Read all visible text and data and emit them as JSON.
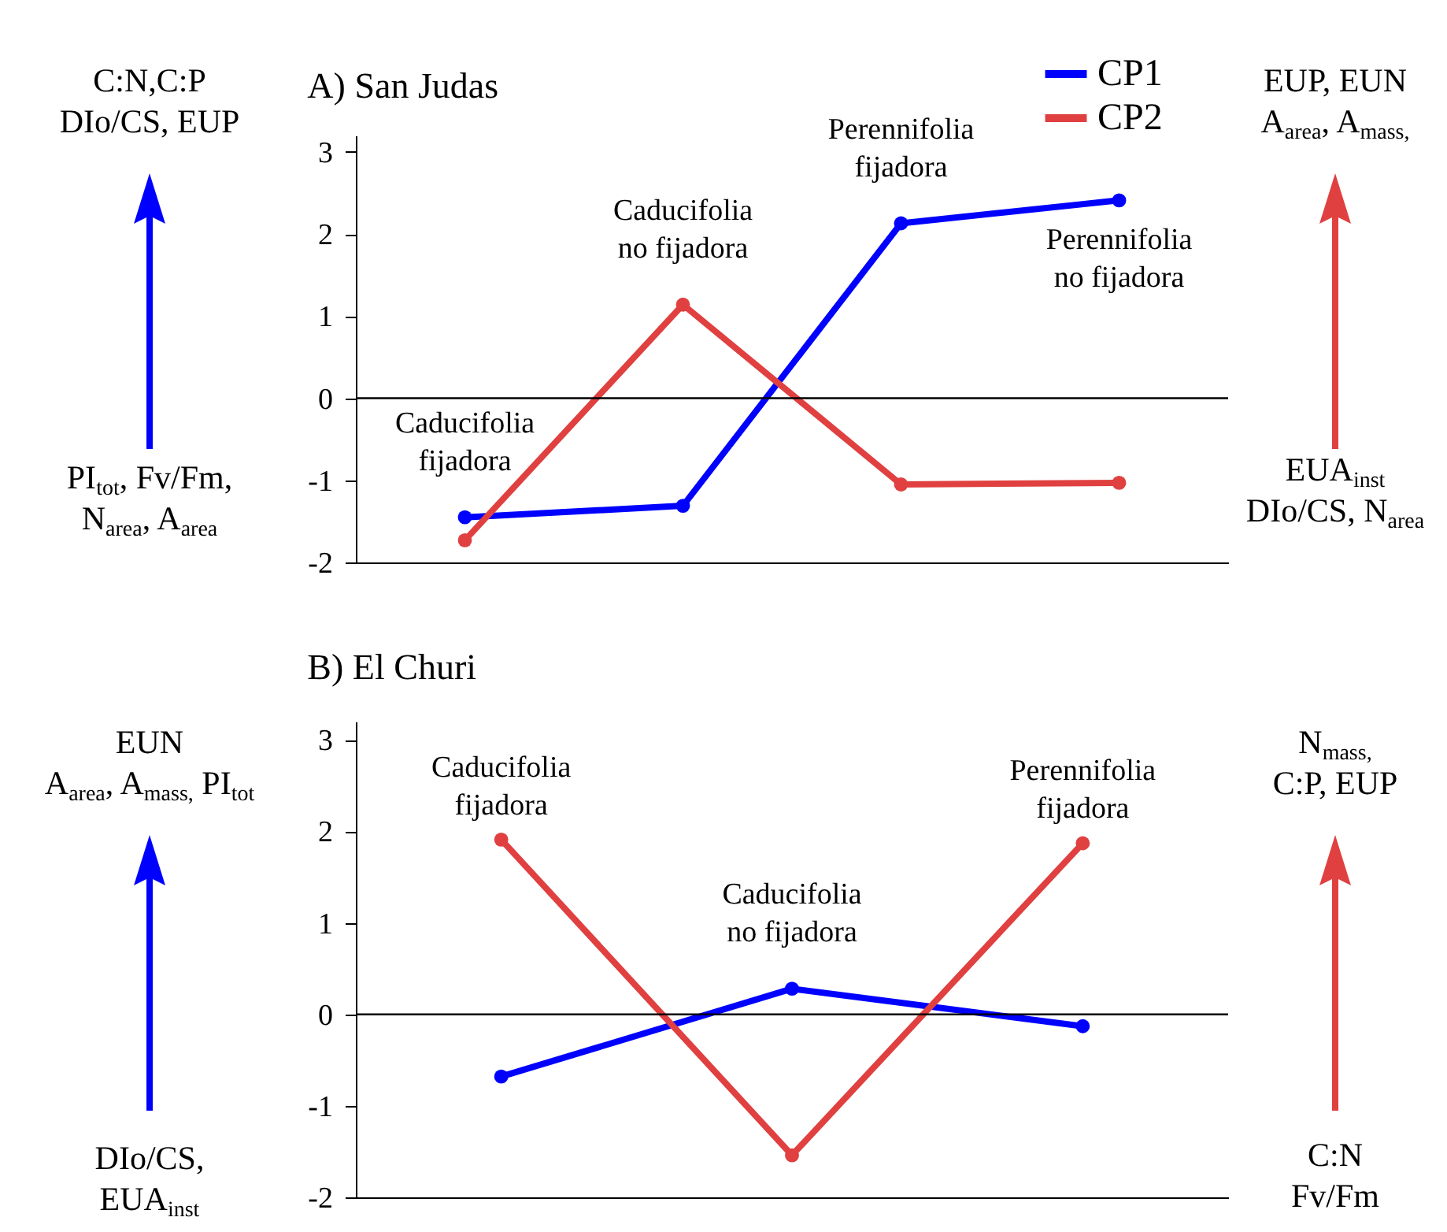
{
  "chart_data": [
    {
      "type": "line",
      "title": "A) San Judas",
      "categories": [
        "Caducifolia\nfijadora",
        "Caducifolia\nno fijadora",
        "Perennifolia\nfijadora",
        "Perennifolia\nno fijadora"
      ],
      "series": [
        {
          "name": "CP1",
          "color": "#0000ff",
          "values": [
            -1.45,
            -1.31,
            2.13,
            2.41
          ]
        },
        {
          "name": "CP2",
          "color": "#e04040",
          "values": [
            -1.73,
            1.14,
            -1.05,
            -1.03
          ]
        }
      ],
      "ylim": [
        -2,
        3.2
      ],
      "yticks": [
        -2,
        -1,
        0,
        1,
        2,
        3
      ],
      "tick_labels": "y",
      "grid": false,
      "legend": "top right",
      "marker": "circle",
      "line_style": "solid",
      "ref_lines": [
        {
          "axis": "y",
          "value": 0,
          "color": "#000000"
        }
      ],
      "annotations": [
        "C:N,C:P\nDIo/CS, EUP",
        "PI$_{tot}$, Fv/Fm,\nN$_{area}$, A$_{area}$",
        "EUP, EUN\nA$_{area}$, A$_{mass,}$",
        "EUA$_{inst}$\nDIo/CS, N$_{area}$"
      ]
    },
    {
      "type": "line",
      "title": "B) El Churi",
      "categories": [
        "Caducifolia\nfijadora",
        "Caducifolia\nno fijadora",
        "Perennifolia\nfijadora"
      ],
      "series": [
        {
          "color": "#0000ff",
          "values": [
            -0.68,
            0.28,
            -0.13
          ]
        },
        {
          "color": "#e04040",
          "values": [
            1.91,
            -1.54,
            1.87
          ]
        }
      ],
      "ylim": [
        -2,
        3.2
      ],
      "yticks": [
        -2,
        -1,
        0,
        1,
        2,
        3
      ],
      "tick_labels": "y",
      "grid": false,
      "legend": false,
      "marker": "circle",
      "line_style": "solid",
      "ref_lines": [
        {
          "axis": "y",
          "value": 0,
          "color": "#000000"
        }
      ],
      "annotations": [
        "EUN\nA$_{area}$, A$_{mass,}$ PI$_{tot}$",
        "DIo/CS,\nEUA$_{inst}$",
        "N$_{mass,}$\nC:P, EUP",
        "C:N\nFv/Fm"
      ]
    }
  ]
}
